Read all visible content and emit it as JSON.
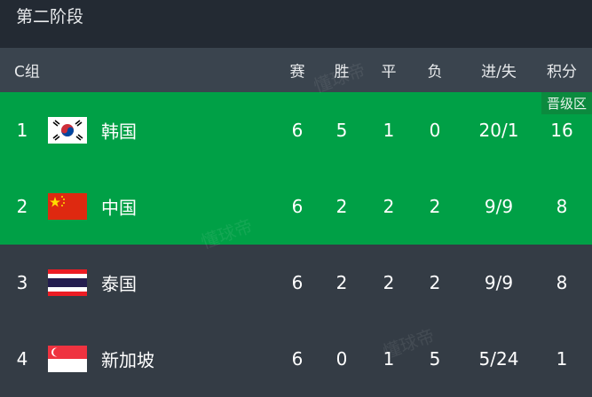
{
  "stage_title": "第二阶段",
  "group": "C组",
  "columns": [
    "赛",
    "胜",
    "平",
    "负",
    "进/失",
    "积分"
  ],
  "qualify_badge": "晋级区",
  "watermark": "懂球帝",
  "colors": {
    "qualify": "#00a046",
    "row": "#343c45",
    "header": "#3a444e",
    "top": "#232a33"
  },
  "rows": [
    {
      "rank": "1",
      "team": "韩国",
      "flag": "south-korea-flag",
      "stats": [
        "6",
        "5",
        "1",
        "0",
        "20/1",
        "16"
      ],
      "qualified": true
    },
    {
      "rank": "2",
      "team": "中国",
      "flag": "china-flag",
      "stats": [
        "6",
        "2",
        "2",
        "2",
        "9/9",
        "8"
      ],
      "qualified": true
    },
    {
      "rank": "3",
      "team": "泰国",
      "flag": "thailand-flag",
      "stats": [
        "6",
        "2",
        "2",
        "2",
        "9/9",
        "8"
      ],
      "qualified": false
    },
    {
      "rank": "4",
      "team": "新加坡",
      "flag": "singapore-flag",
      "stats": [
        "6",
        "0",
        "1",
        "5",
        "5/24",
        "1"
      ],
      "qualified": false
    }
  ]
}
